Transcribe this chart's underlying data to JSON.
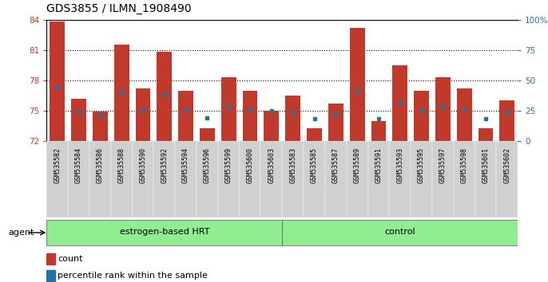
{
  "title": "GDS3855 / ILMN_1908490",
  "categories": [
    "GSM535582",
    "GSM535584",
    "GSM535586",
    "GSM535588",
    "GSM535590",
    "GSM535592",
    "GSM535594",
    "GSM535596",
    "GSM535599",
    "GSM535600",
    "GSM535603",
    "GSM535583",
    "GSM535585",
    "GSM535587",
    "GSM535589",
    "GSM535591",
    "GSM535593",
    "GSM535595",
    "GSM535597",
    "GSM535598",
    "GSM535601",
    "GSM535602"
  ],
  "bar_heights": [
    83.8,
    76.2,
    74.9,
    81.5,
    77.2,
    80.8,
    77.0,
    73.3,
    78.3,
    77.0,
    75.0,
    76.5,
    73.3,
    75.7,
    83.2,
    74.0,
    79.5,
    77.0,
    78.3,
    77.2,
    73.3,
    76.0
  ],
  "blue_dots": [
    77.3,
    74.9,
    74.5,
    76.8,
    75.0,
    76.6,
    75.1,
    74.3,
    75.4,
    75.1,
    75.0,
    74.8,
    74.2,
    74.6,
    77.0,
    74.2,
    75.8,
    75.0,
    75.4,
    75.1,
    74.2,
    74.8
  ],
  "ylim": [
    72,
    84
  ],
  "yticks": [
    72,
    75,
    78,
    81,
    84
  ],
  "right_yticks_pct": [
    0,
    25,
    50,
    75,
    100
  ],
  "group1_label": "estrogen-based HRT",
  "group2_label": "control",
  "group1_count": 11,
  "group2_count": 11,
  "agent_label": "agent",
  "bar_color": "#c0392b",
  "dot_color": "#2471a3",
  "group_bg_color": "#90ee90",
  "tick_bg_color": "#d0d0d0",
  "legend_count_label": "count",
  "legend_pct_label": "percentile rank within the sample",
  "title_fontsize": 10,
  "tick_fontsize": 7.5
}
